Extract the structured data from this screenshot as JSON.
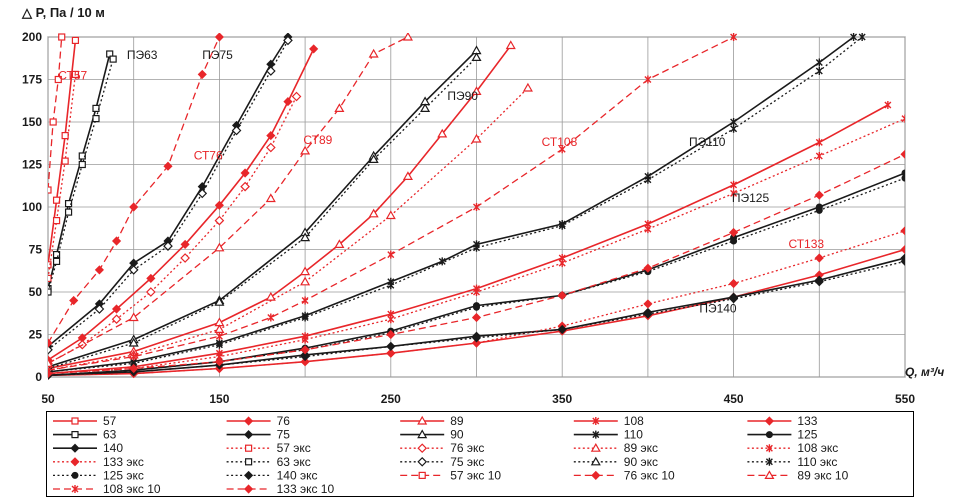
{
  "chart_data": {
    "type": "line",
    "ylabel": "△ P, Па / 10 м",
    "xlabel": "Q, м³/ч",
    "xlim": [
      50,
      550
    ],
    "ylim": [
      0,
      200
    ],
    "xticks": [
      50,
      150,
      250,
      350,
      450,
      550
    ],
    "yticks": [
      0,
      25,
      50,
      75,
      100,
      125,
      150,
      175,
      200
    ],
    "grid": true,
    "legend_position": "bottom",
    "colors": {
      "steel": "#e8262a",
      "pe": "#1a1a1a"
    },
    "annotations": [
      {
        "text": "СТ57",
        "x": 56,
        "y": 175,
        "color": "#e8262a"
      },
      {
        "text": "ПЭ63",
        "x": 96,
        "y": 187,
        "color": "#1a1a1a"
      },
      {
        "text": "ПЭ75",
        "x": 140,
        "y": 187,
        "color": "#1a1a1a"
      },
      {
        "text": "СТ76",
        "x": 135,
        "y": 128,
        "color": "#e8262a"
      },
      {
        "text": "СТ89",
        "x": 199,
        "y": 137,
        "color": "#e8262a"
      },
      {
        "text": "ПЭ90",
        "x": 283,
        "y": 163,
        "color": "#1a1a1a"
      },
      {
        "text": "СТ108",
        "x": 338,
        "y": 136,
        "color": "#e8262a"
      },
      {
        "text": "ПЭ110",
        "x": 424,
        "y": 136,
        "color": "#1a1a1a"
      },
      {
        "text": "ПЭ125",
        "x": 449,
        "y": 103,
        "color": "#1a1a1a"
      },
      {
        "text": "СТ133",
        "x": 482,
        "y": 76,
        "color": "#e8262a"
      },
      {
        "text": "ПЭ140",
        "x": 430,
        "y": 38,
        "color": "#1a1a1a"
      }
    ],
    "series": [
      {
        "name": "57",
        "color": "#e8262a",
        "dash": "solid",
        "marker": "square-open",
        "points": [
          [
            50,
            66
          ],
          [
            55,
            104
          ],
          [
            60,
            142
          ],
          [
            66,
            198
          ]
        ]
      },
      {
        "name": "76",
        "color": "#e8262a",
        "dash": "solid",
        "marker": "diamond-filled",
        "points": [
          [
            50,
            10
          ],
          [
            70,
            23
          ],
          [
            90,
            40
          ],
          [
            110,
            58
          ],
          [
            130,
            78
          ],
          [
            150,
            101
          ],
          [
            165,
            120
          ],
          [
            180,
            142
          ],
          [
            190,
            162
          ],
          [
            205,
            193
          ]
        ]
      },
      {
        "name": "89",
        "color": "#e8262a",
        "dash": "solid",
        "marker": "triangle-open",
        "points": [
          [
            50,
            5
          ],
          [
            100,
            15
          ],
          [
            150,
            32
          ],
          [
            180,
            47
          ],
          [
            200,
            62
          ],
          [
            220,
            78
          ],
          [
            240,
            96
          ],
          [
            260,
            118
          ],
          [
            280,
            143
          ],
          [
            300,
            168
          ],
          [
            320,
            195
          ]
        ]
      },
      {
        "name": "108",
        "color": "#e8262a",
        "dash": "solid",
        "marker": "star",
        "points": [
          [
            50,
            2
          ],
          [
            100,
            6
          ],
          [
            150,
            14
          ],
          [
            200,
            24
          ],
          [
            250,
            37
          ],
          [
            300,
            52
          ],
          [
            350,
            70
          ],
          [
            400,
            90
          ],
          [
            450,
            113
          ],
          [
            500,
            138
          ],
          [
            540,
            160
          ]
        ]
      },
      {
        "name": "133",
        "color": "#e8262a",
        "dash": "solid",
        "marker": "diamond-filled",
        "points": [
          [
            50,
            1
          ],
          [
            100,
            2
          ],
          [
            150,
            5
          ],
          [
            200,
            9
          ],
          [
            250,
            14
          ],
          [
            300,
            20
          ],
          [
            350,
            27
          ],
          [
            400,
            36
          ],
          [
            450,
            47
          ],
          [
            500,
            60
          ],
          [
            550,
            75
          ]
        ]
      },
      {
        "name": "63",
        "color": "#1a1a1a",
        "dash": "solid",
        "marker": "square-open",
        "points": [
          [
            50,
            52
          ],
          [
            55,
            72
          ],
          [
            62,
            102
          ],
          [
            70,
            130
          ],
          [
            78,
            158
          ],
          [
            86,
            190
          ]
        ]
      },
      {
        "name": "75",
        "color": "#1a1a1a",
        "dash": "solid",
        "marker": "diamond-filled",
        "points": [
          [
            50,
            18
          ],
          [
            80,
            43
          ],
          [
            100,
            67
          ],
          [
            120,
            80
          ],
          [
            140,
            112
          ],
          [
            160,
            148
          ],
          [
            180,
            184
          ],
          [
            190,
            200
          ]
        ]
      },
      {
        "name": "90",
        "color": "#1a1a1a",
        "dash": "solid",
        "marker": "triangle-open",
        "points": [
          [
            50,
            6
          ],
          [
            100,
            22
          ],
          [
            150,
            45
          ],
          [
            200,
            85
          ],
          [
            240,
            130
          ],
          [
            270,
            162
          ],
          [
            300,
            192
          ]
        ]
      },
      {
        "name": "110",
        "color": "#1a1a1a",
        "dash": "solid",
        "marker": "star",
        "points": [
          [
            50,
            3
          ],
          [
            100,
            9
          ],
          [
            150,
            20
          ],
          [
            200,
            36
          ],
          [
            250,
            56
          ],
          [
            280,
            68
          ],
          [
            300,
            78
          ],
          [
            350,
            90
          ],
          [
            400,
            118
          ],
          [
            450,
            150
          ],
          [
            500,
            185
          ],
          [
            520,
            200
          ]
        ]
      },
      {
        "name": "125",
        "color": "#1a1a1a",
        "dash": "solid",
        "marker": "circle-filled",
        "points": [
          [
            50,
            1
          ],
          [
            100,
            4
          ],
          [
            150,
            9
          ],
          [
            200,
            17
          ],
          [
            250,
            27
          ],
          [
            300,
            42
          ],
          [
            350,
            48
          ],
          [
            400,
            63
          ],
          [
            450,
            82
          ],
          [
            500,
            100
          ],
          [
            550,
            120
          ]
        ]
      },
      {
        "name": "140",
        "color": "#1a1a1a",
        "dash": "solid",
        "marker": "diamond-filled",
        "points": [
          [
            50,
            1
          ],
          [
            100,
            3
          ],
          [
            150,
            7
          ],
          [
            200,
            13
          ],
          [
            250,
            18
          ],
          [
            300,
            24
          ],
          [
            350,
            28
          ],
          [
            400,
            38
          ],
          [
            450,
            47
          ],
          [
            500,
            57
          ],
          [
            550,
            70
          ]
        ]
      },
      {
        "name": "57 экс",
        "color": "#e8262a",
        "dash": "dotted",
        "marker": "square-open",
        "points": [
          [
            50,
            58
          ],
          [
            55,
            92
          ],
          [
            60,
            127
          ],
          [
            66,
            178
          ]
        ]
      },
      {
        "name": "76 экс",
        "color": "#e8262a",
        "dash": "dotted",
        "marker": "diamond-open",
        "points": [
          [
            50,
            8
          ],
          [
            70,
            19
          ],
          [
            90,
            34
          ],
          [
            110,
            50
          ],
          [
            130,
            70
          ],
          [
            150,
            92
          ],
          [
            165,
            112
          ],
          [
            180,
            135
          ],
          [
            195,
            165
          ]
        ]
      },
      {
        "name": "89 экс",
        "color": "#e8262a",
        "dash": "dotted",
        "marker": "triangle-open",
        "points": [
          [
            50,
            4
          ],
          [
            100,
            13
          ],
          [
            150,
            28
          ],
          [
            200,
            56
          ],
          [
            250,
            95
          ],
          [
            300,
            140
          ],
          [
            330,
            170
          ]
        ]
      },
      {
        "name": "108 экс",
        "color": "#e8262a",
        "dash": "dotted",
        "marker": "star",
        "points": [
          [
            50,
            2
          ],
          [
            100,
            5
          ],
          [
            150,
            12
          ],
          [
            200,
            22
          ],
          [
            250,
            34
          ],
          [
            300,
            50
          ],
          [
            350,
            67
          ],
          [
            400,
            87
          ],
          [
            450,
            108
          ],
          [
            500,
            130
          ],
          [
            550,
            152
          ]
        ]
      },
      {
        "name": "133 экс",
        "color": "#e8262a",
        "dash": "dotted",
        "marker": "diamond-filled",
        "points": [
          [
            50,
            1
          ],
          [
            100,
            2
          ],
          [
            150,
            5
          ],
          [
            200,
            9
          ],
          [
            250,
            14
          ],
          [
            300,
            20
          ],
          [
            350,
            30
          ],
          [
            400,
            43
          ],
          [
            450,
            55
          ],
          [
            500,
            70
          ],
          [
            550,
            86
          ]
        ]
      },
      {
        "name": "63 экс",
        "color": "#1a1a1a",
        "dash": "dotted",
        "marker": "square-open",
        "points": [
          [
            50,
            50
          ],
          [
            55,
            68
          ],
          [
            62,
            97
          ],
          [
            70,
            125
          ],
          [
            78,
            152
          ],
          [
            88,
            187
          ]
        ]
      },
      {
        "name": "75 экс",
        "color": "#1a1a1a",
        "dash": "dotted",
        "marker": "diamond-open",
        "points": [
          [
            50,
            16
          ],
          [
            80,
            40
          ],
          [
            100,
            63
          ],
          [
            120,
            77
          ],
          [
            140,
            108
          ],
          [
            160,
            145
          ],
          [
            180,
            180
          ],
          [
            190,
            198
          ]
        ]
      },
      {
        "name": "90 экс",
        "color": "#1a1a1a",
        "dash": "dotted",
        "marker": "triangle-open",
        "points": [
          [
            50,
            5
          ],
          [
            100,
            20
          ],
          [
            150,
            44
          ],
          [
            200,
            82
          ],
          [
            240,
            128
          ],
          [
            270,
            158
          ],
          [
            300,
            188
          ]
        ]
      },
      {
        "name": "110 экс",
        "color": "#1a1a1a",
        "dash": "dotted",
        "marker": "star",
        "points": [
          [
            50,
            3
          ],
          [
            100,
            8
          ],
          [
            150,
            19
          ],
          [
            200,
            35
          ],
          [
            250,
            54
          ],
          [
            300,
            76
          ],
          [
            350,
            89
          ],
          [
            400,
            116
          ],
          [
            450,
            146
          ],
          [
            500,
            180
          ],
          [
            525,
            200
          ]
        ]
      },
      {
        "name": "125 экс",
        "color": "#1a1a1a",
        "dash": "dotted",
        "marker": "circle-filled",
        "points": [
          [
            50,
            1
          ],
          [
            100,
            4
          ],
          [
            150,
            9
          ],
          [
            200,
            16
          ],
          [
            250,
            26
          ],
          [
            300,
            41
          ],
          [
            350,
            48
          ],
          [
            400,
            62
          ],
          [
            450,
            80
          ],
          [
            500,
            98
          ],
          [
            550,
            117
          ]
        ]
      },
      {
        "name": "140 экс",
        "color": "#1a1a1a",
        "dash": "dotted",
        "marker": "diamond-filled",
        "points": [
          [
            50,
            1
          ],
          [
            100,
            3
          ],
          [
            150,
            7
          ],
          [
            200,
            12
          ],
          [
            250,
            18
          ],
          [
            300,
            23
          ],
          [
            350,
            28
          ],
          [
            400,
            37
          ],
          [
            450,
            46
          ],
          [
            500,
            56
          ],
          [
            550,
            68
          ]
        ]
      },
      {
        "name": "57 экс 10",
        "color": "#e8262a",
        "dash": "dashed",
        "marker": "square-open",
        "points": [
          [
            50,
            110
          ],
          [
            53,
            150
          ],
          [
            56,
            175
          ],
          [
            58,
            200
          ]
        ]
      },
      {
        "name": "76 экс 10",
        "color": "#e8262a",
        "dash": "dashed",
        "marker": "diamond-filled",
        "points": [
          [
            50,
            20
          ],
          [
            65,
            45
          ],
          [
            80,
            63
          ],
          [
            90,
            80
          ],
          [
            100,
            100
          ],
          [
            120,
            124
          ],
          [
            140,
            178
          ],
          [
            150,
            200
          ]
        ]
      },
      {
        "name": "89 экс 10",
        "color": "#e8262a",
        "dash": "dashed",
        "marker": "triangle-open",
        "points": [
          [
            50,
            8
          ],
          [
            100,
            35
          ],
          [
            150,
            76
          ],
          [
            180,
            105
          ],
          [
            200,
            133
          ],
          [
            220,
            158
          ],
          [
            240,
            190
          ],
          [
            260,
            200
          ]
        ]
      },
      {
        "name": "108 экс 10",
        "color": "#e8262a",
        "dash": "dashed",
        "marker": "star",
        "points": [
          [
            50,
            4
          ],
          [
            100,
            12
          ],
          [
            150,
            24
          ],
          [
            180,
            35
          ],
          [
            200,
            45
          ],
          [
            250,
            72
          ],
          [
            300,
            100
          ],
          [
            350,
            134
          ],
          [
            400,
            175
          ],
          [
            450,
            200
          ]
        ]
      },
      {
        "name": "133 экс 10",
        "color": "#e8262a",
        "dash": "dashed",
        "marker": "diamond-filled",
        "points": [
          [
            50,
            2
          ],
          [
            100,
            5
          ],
          [
            150,
            9
          ],
          [
            200,
            16
          ],
          [
            250,
            25
          ],
          [
            300,
            35
          ],
          [
            350,
            48
          ],
          [
            400,
            64
          ],
          [
            450,
            85
          ],
          [
            500,
            107
          ],
          [
            550,
            131
          ]
        ]
      }
    ]
  }
}
